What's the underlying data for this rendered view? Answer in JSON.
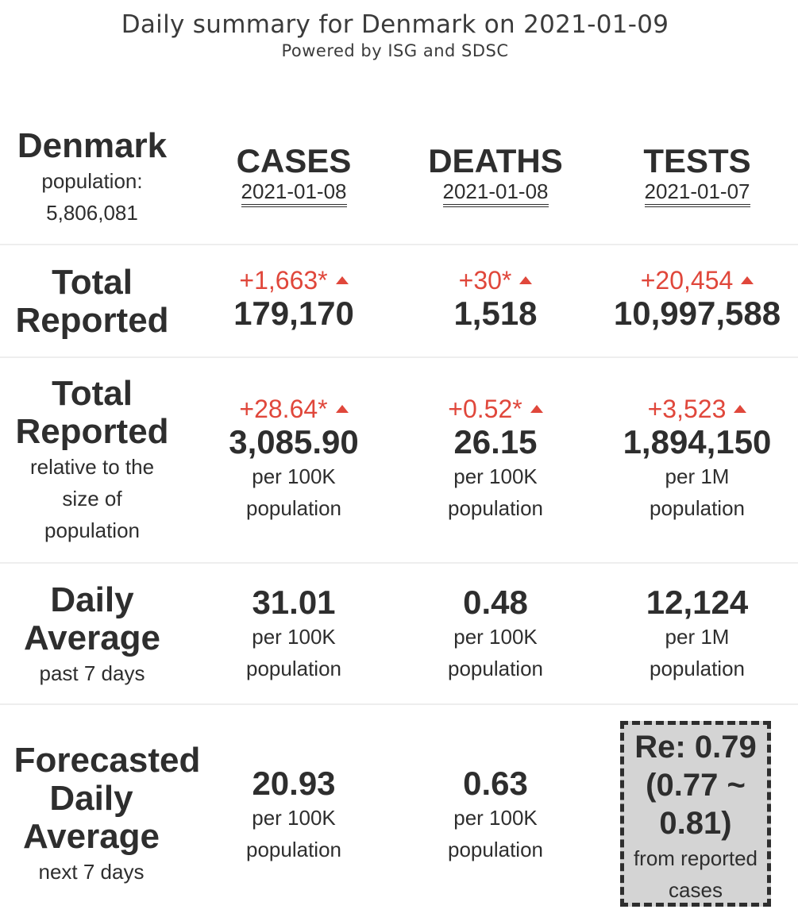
{
  "header": {
    "title": "Daily summary for Denmark on 2021-01-09",
    "subtitle": "Powered by ISG and SDSC"
  },
  "country": {
    "name": "Denmark",
    "population_label": "population:",
    "population": "5,806,081"
  },
  "columns": [
    {
      "label": "CASES",
      "date": "2021-01-08"
    },
    {
      "label": "DEATHS",
      "date": "2021-01-08"
    },
    {
      "label": "TESTS",
      "date": "2021-01-07"
    }
  ],
  "total_reported": {
    "label_line1": "Total",
    "label_line2": "Reported",
    "cells": [
      {
        "delta": "+1,663*",
        "value": "179,170"
      },
      {
        "delta": "+30*",
        "value": "1,518"
      },
      {
        "delta": "+20,454",
        "value": "10,997,588"
      }
    ]
  },
  "relative": {
    "label_line1": "Total",
    "label_line2": "Reported",
    "label_sub1": "relative to the",
    "label_sub2": "size of",
    "label_sub3": "population",
    "cells": [
      {
        "delta": "+28.64*",
        "value": "3,085.90",
        "unit1": "per 100K",
        "unit2": "population"
      },
      {
        "delta": "+0.52*",
        "value": "26.15",
        "unit1": "per 100K",
        "unit2": "population"
      },
      {
        "delta": "+3,523",
        "value": "1,894,150",
        "unit1": "per 1M",
        "unit2": "population"
      }
    ]
  },
  "daily_average": {
    "label_line1": "Daily",
    "label_line2": "Average",
    "label_sub": "past 7 days",
    "cells": [
      {
        "value": "31.01",
        "unit1": "per 100K",
        "unit2": "population"
      },
      {
        "value": "0.48",
        "unit1": "per 100K",
        "unit2": "population"
      },
      {
        "value": "12,124",
        "unit1": "per 1M",
        "unit2": "population"
      }
    ]
  },
  "forecast": {
    "label_line1": "Forecasted",
    "label_line2": "Daily",
    "label_line3": "Average",
    "label_sub": "next 7 days",
    "cells": [
      {
        "value": "20.93",
        "unit1": "per 100K",
        "unit2": "population"
      },
      {
        "value": "0.63",
        "unit1": "per 100K",
        "unit2": "population"
      }
    ],
    "re": {
      "line1": "Re: 0.79",
      "line2": "(0.77 ~",
      "line3": "0.81)",
      "sub1": "from reported",
      "sub2": "cases"
    }
  },
  "colors": {
    "increase": "#e0473b",
    "text": "#2e2e2e",
    "re_box": "#d4d4d4"
  },
  "icons": {
    "increase": "triangle-up-icon"
  }
}
